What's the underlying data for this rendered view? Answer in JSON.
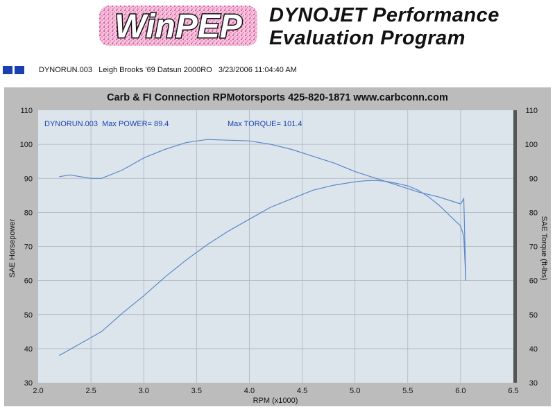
{
  "header": {
    "logo_text": "WinPEP",
    "title_line1": "DYNOJET Performance",
    "title_line2": "Evaluation Program",
    "run_info": "DYNORUN.003   Leigh Brooks '69 Datsun 2000RO   3/23/2006 11:04:40 AM"
  },
  "colors": {
    "accent": "#1a3fb0",
    "plot_background": "#dde5ec",
    "frame": "#bcbcbc",
    "series": "#5a86c8"
  },
  "chart_data": {
    "type": "line",
    "title": "Carb & FI Connection  RPMotorsports    425-820-1871   www.carbconn.com",
    "legend_left": "DYNORUN.003  Max POWER= 89.4",
    "legend_right": "Max TORQUE= 101.4",
    "xlabel": "RPM (x1000)",
    "ylabel_left": "SAE Horsepower",
    "ylabel_right": "SAE Torque (ft-lbs)",
    "xlim": [
      2.0,
      6.5
    ],
    "ylim": [
      30,
      110
    ],
    "x_ticks": [
      "2.0",
      "2.5",
      "3.0",
      "3.5",
      "4.0",
      "4.5",
      "5.0",
      "5.5",
      "6.0",
      "6.5"
    ],
    "y_ticks": [
      "30",
      "40",
      "50",
      "60",
      "70",
      "80",
      "90",
      "100",
      "110"
    ],
    "grid": true,
    "series": [
      {
        "name": "Power",
        "x": [
          2.2,
          2.4,
          2.6,
          2.8,
          3.0,
          3.2,
          3.4,
          3.6,
          3.8,
          4.0,
          4.2,
          4.4,
          4.6,
          4.8,
          5.0,
          5.1,
          5.2,
          5.3,
          5.4,
          5.5,
          5.6,
          5.7,
          5.8,
          5.9,
          6.0,
          6.03,
          6.05
        ],
        "y": [
          38,
          41.5,
          45,
          50.5,
          55.5,
          61,
          66,
          70.5,
          74.5,
          78,
          81.5,
          84,
          86.5,
          88,
          89,
          89.3,
          89.4,
          89.1,
          88.5,
          87.8,
          86.5,
          84.5,
          82,
          79,
          76,
          73,
          60
        ]
      },
      {
        "name": "Torque",
        "x": [
          2.2,
          2.3,
          2.4,
          2.5,
          2.6,
          2.8,
          3.0,
          3.2,
          3.4,
          3.6,
          3.8,
          4.0,
          4.2,
          4.4,
          4.6,
          4.8,
          5.0,
          5.2,
          5.4,
          5.6,
          5.8,
          6.0,
          6.03,
          6.05
        ],
        "y": [
          90.5,
          91,
          90.5,
          90,
          90,
          92.5,
          96,
          98.5,
          100.5,
          101.4,
          101.2,
          101,
          100,
          98.5,
          96.5,
          94.5,
          92,
          90,
          88,
          86,
          84.5,
          82.5,
          84,
          60
        ]
      }
    ]
  }
}
